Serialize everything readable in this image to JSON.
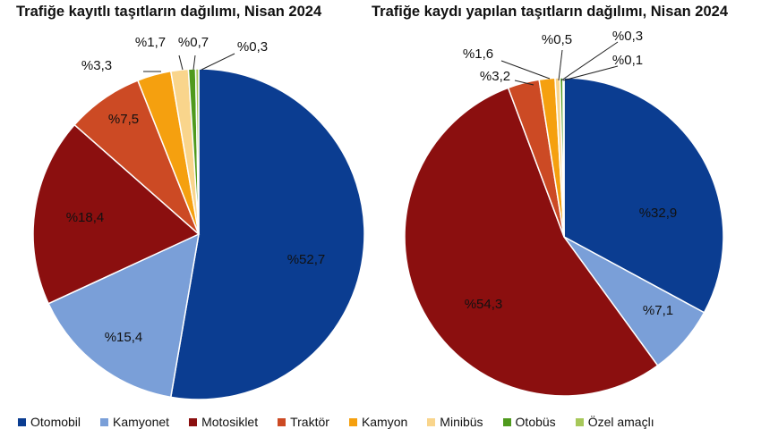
{
  "colors": {
    "Otomobil": "#0b3d91",
    "Kamyonet": "#7a9fd8",
    "Motosiklet": "#8b0f0f",
    "Traktör": "#cc4a24",
    "Kamyon": "#f5a00f",
    "Minibüs": "#f9d58c",
    "Otobüs": "#4f9a1d",
    "Özel amaçlı": "#a7c85a"
  },
  "legend": [
    {
      "label": "Otomobil",
      "color": "#0b3d91"
    },
    {
      "label": "Kamyonet",
      "color": "#7a9fd8"
    },
    {
      "label": "Motosiklet",
      "color": "#8b0f0f"
    },
    {
      "label": "Traktör",
      "color": "#cc4a24"
    },
    {
      "label": "Kamyon",
      "color": "#f5a00f"
    },
    {
      "label": "Minibüs",
      "color": "#f9d58c"
    },
    {
      "label": "Otobüs",
      "color": "#4f9a1d"
    },
    {
      "label": "Özel amaçlı",
      "color": "#a7c85a"
    }
  ],
  "chart_data": [
    {
      "type": "pie",
      "title": "Trafiğe kayıtlı taşıtların dağılımı, Nisan 2024",
      "categories": [
        "Otomobil",
        "Kamyonet",
        "Motosiklet",
        "Traktör",
        "Kamyon",
        "Minibüs",
        "Otobüs",
        "Özel amaçlı"
      ],
      "values": [
        52.7,
        15.4,
        18.4,
        7.5,
        3.3,
        1.7,
        0.7,
        0.3
      ],
      "labels": [
        "%52,7",
        "%15,4",
        "%18,4",
        "%7,5",
        "%3,3",
        "%1,7",
        "%0,7",
        "%0,3"
      ]
    },
    {
      "type": "pie",
      "title": "Trafiğe kaydı yapılan taşıtların dağılımı, Nisan 2024",
      "categories": [
        "Otomobil",
        "Kamyonet",
        "Motosiklet",
        "Traktör",
        "Kamyon",
        "Minibüs",
        "Otobüs",
        "Özel amaçlı"
      ],
      "values": [
        32.9,
        7.1,
        54.3,
        3.2,
        1.6,
        0.5,
        0.3,
        0.1
      ],
      "labels": [
        "%32,9",
        "%7,1",
        "%54,3",
        "%3,2",
        "%1,6",
        "%0,5",
        "%0,3",
        "%0,1"
      ]
    }
  ]
}
